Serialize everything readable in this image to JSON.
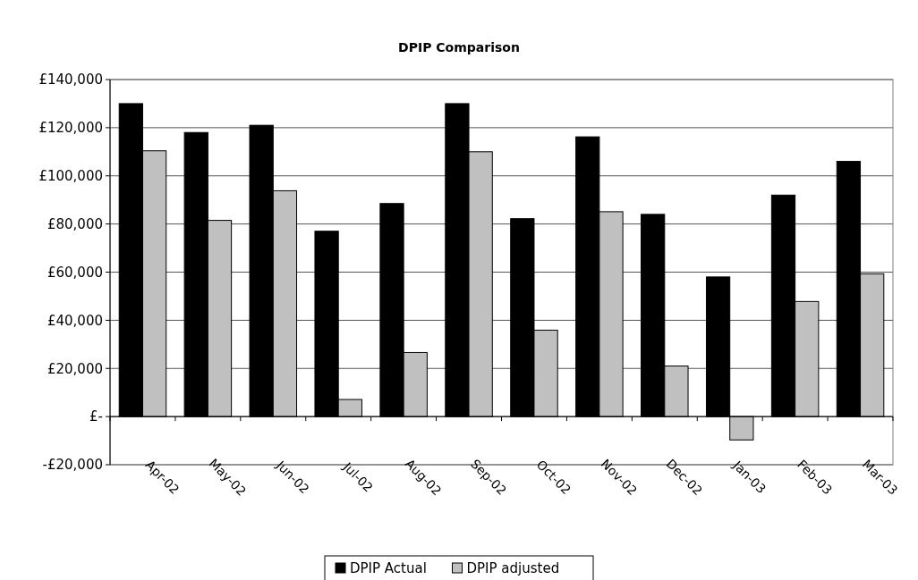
{
  "chart_data": {
    "type": "bar",
    "title": "DPIP Comparison",
    "categories": [
      "Apr-02",
      "May-02",
      "Jun-02",
      "Jul-02",
      "Aug-02",
      "Sep-02",
      "Oct-02",
      "Nov-02",
      "Dec-02",
      "Jan-03",
      "Feb-03",
      "Mar-03"
    ],
    "series": [
      {
        "name": "DPIP Actual",
        "color": "#000000",
        "values": [
          130000,
          118000,
          121000,
          77000,
          88500,
          130000,
          82200,
          116200,
          84000,
          58000,
          92000,
          106000
        ]
      },
      {
        "name": "DPIP adjusted",
        "color": "#c0c0c0",
        "values": [
          110400,
          81500,
          93800,
          7100,
          26600,
          110000,
          35900,
          85100,
          21000,
          -9700,
          47800,
          59300
        ]
      }
    ],
    "ylim": [
      -20000,
      140000
    ],
    "yticks": [
      {
        "value": -20000,
        "label": "-£20,000"
      },
      {
        "value": 0,
        "label": "£-"
      },
      {
        "value": 20000,
        "label": "£20,000"
      },
      {
        "value": 40000,
        "label": "£40,000"
      },
      {
        "value": 60000,
        "label": "£60,000"
      },
      {
        "value": 80000,
        "label": "£80,000"
      },
      {
        "value": 100000,
        "label": "£100,000"
      },
      {
        "value": 120000,
        "label": "£120,000"
      },
      {
        "value": 140000,
        "label": "£140,000"
      }
    ],
    "grid": "y",
    "legend": "bottom"
  }
}
